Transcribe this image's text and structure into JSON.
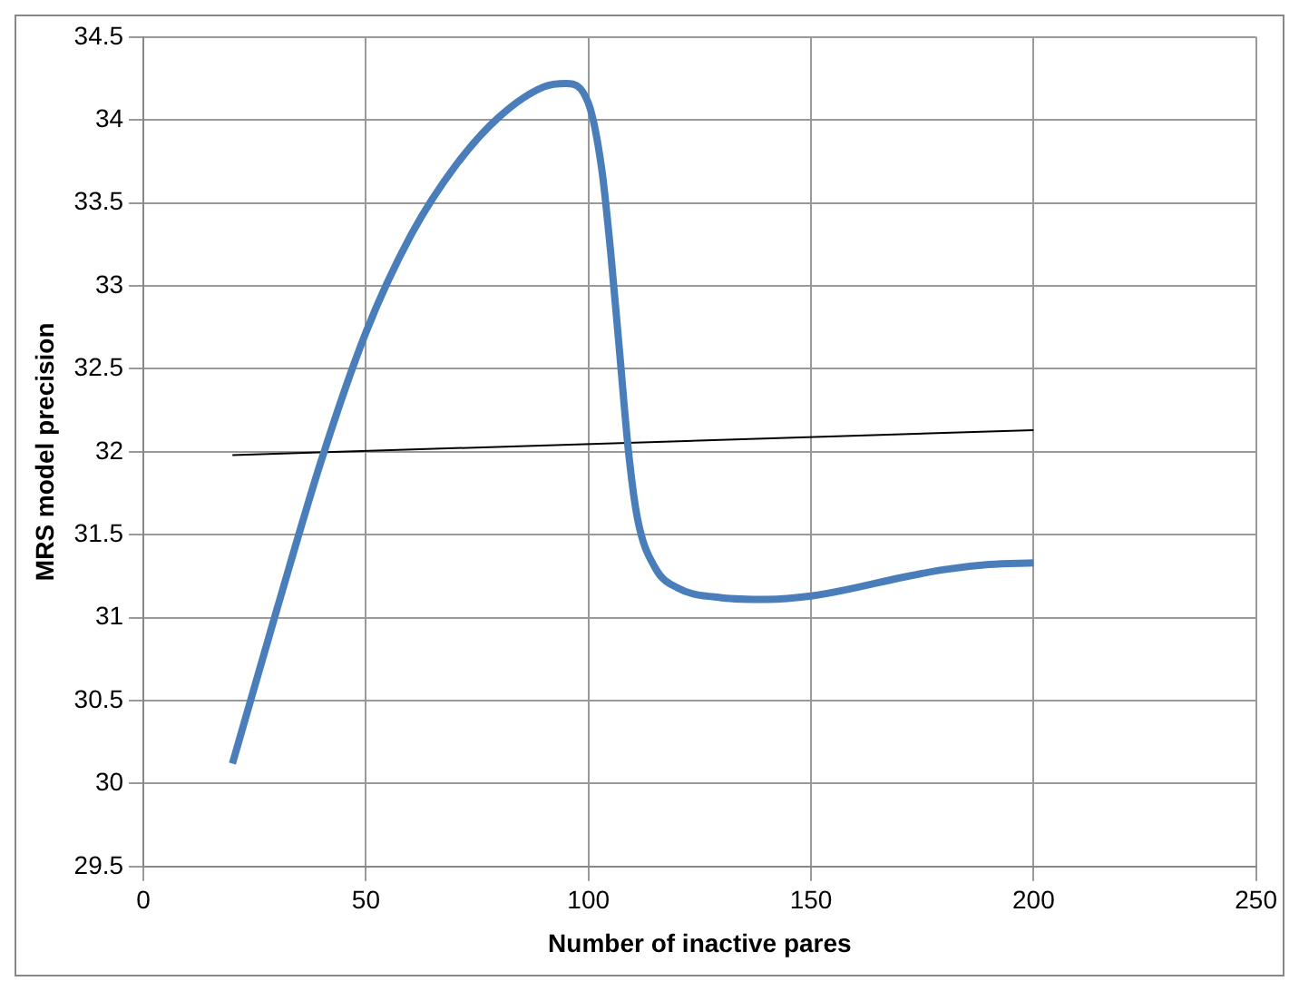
{
  "chart_data": {
    "type": "line",
    "xlabel": "Number of inactive pares",
    "ylabel": "MRS model precision",
    "xlim": [
      0,
      250
    ],
    "xticks": [
      0,
      50,
      100,
      150,
      200,
      250
    ],
    "ylim": [
      29.5,
      34.5
    ],
    "yticks": [
      29.5,
      30,
      30.5,
      31,
      31.5,
      32,
      32.5,
      33,
      33.5,
      34,
      34.5
    ],
    "grid": true,
    "legend": false,
    "marker": "none",
    "series": [
      {
        "color": "#4a7ebb",
        "x": [
          20,
          30,
          40,
          50,
          60,
          70,
          80,
          90,
          95,
          100,
          103,
          105,
          107,
          109,
          111,
          115,
          120,
          130,
          140,
          150,
          160,
          170,
          180,
          190,
          200
        ],
        "values": [
          30.12,
          31.05,
          31.95,
          32.72,
          33.3,
          33.72,
          34.02,
          34.2,
          34.22,
          34.1,
          33.7,
          33.2,
          32.6,
          32.0,
          31.6,
          31.3,
          31.18,
          31.12,
          31.11,
          31.13,
          31.18,
          31.24,
          31.29,
          31.32,
          31.33
        ]
      },
      {
        "type": "line",
        "color": "#000000",
        "x": [
          20,
          200
        ],
        "values": [
          31.98,
          32.13
        ]
      }
    ]
  }
}
